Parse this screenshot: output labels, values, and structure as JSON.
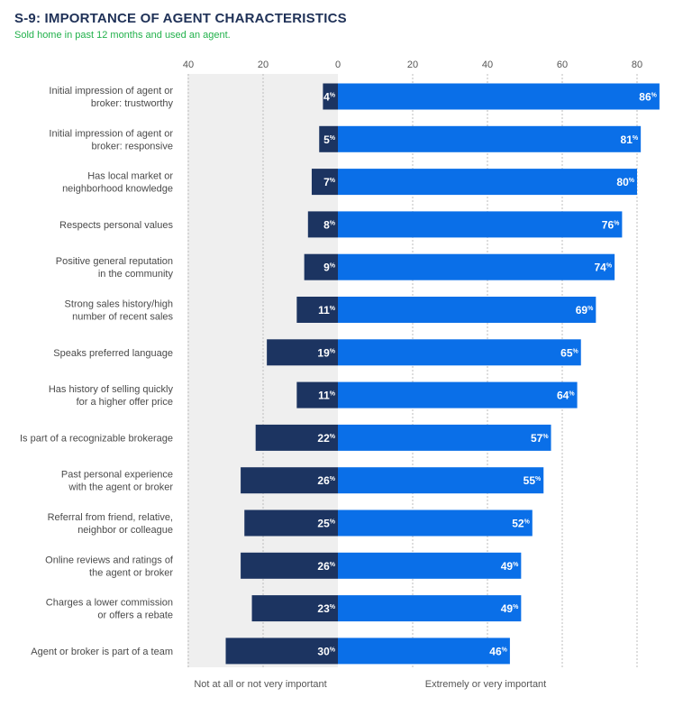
{
  "title": "S-9: IMPORTANCE OF AGENT CHARACTERISTICS",
  "subtitle": "Sold home in past 12 months and used an agent.",
  "colors": {
    "not_important": "#1c3461",
    "important": "#0a6fe8",
    "panel": "#efefef",
    "gridline": "#bdbdbd"
  },
  "chart_data": {
    "type": "bar",
    "orientation": "horizontal-diverging",
    "x_ticks_left": [
      "40",
      "20",
      "0"
    ],
    "x_ticks_right": [
      "20",
      "40",
      "60",
      "80"
    ],
    "xlim_left": [
      0,
      40
    ],
    "xlim_right": [
      0,
      90
    ],
    "value_suffix": "%",
    "categories": [
      [
        "Initial impression of agent or",
        "broker: trustworthy"
      ],
      [
        "Initial impression of agent or",
        "broker: responsive"
      ],
      [
        "Has local market or",
        "neighborhood knowledge"
      ],
      [
        "Respects personal values"
      ],
      [
        "Positive general reputation",
        "in the community"
      ],
      [
        "Strong sales history/high",
        "number of recent sales"
      ],
      [
        "Speaks preferred language"
      ],
      [
        "Has history of selling quickly",
        "for a higher offer price"
      ],
      [
        "Is part of a recognizable brokerage"
      ],
      [
        "Past personal experience",
        "with the agent or broker"
      ],
      [
        "Referral from friend, relative,",
        "neighbor or colleague"
      ],
      [
        "Online reviews and ratings of",
        "the agent or broker"
      ],
      [
        "Charges a lower commission",
        "or offers a rebate"
      ],
      [
        "Agent or broker is part of a team"
      ]
    ],
    "series": [
      {
        "name": "Not at all or not very important",
        "values": [
          4,
          5,
          7,
          8,
          9,
          11,
          19,
          11,
          22,
          26,
          25,
          26,
          23,
          30
        ]
      },
      {
        "name": "Extremely or very important",
        "values": [
          86,
          81,
          80,
          76,
          74,
          69,
          65,
          64,
          57,
          55,
          52,
          49,
          49,
          46
        ]
      }
    ]
  }
}
